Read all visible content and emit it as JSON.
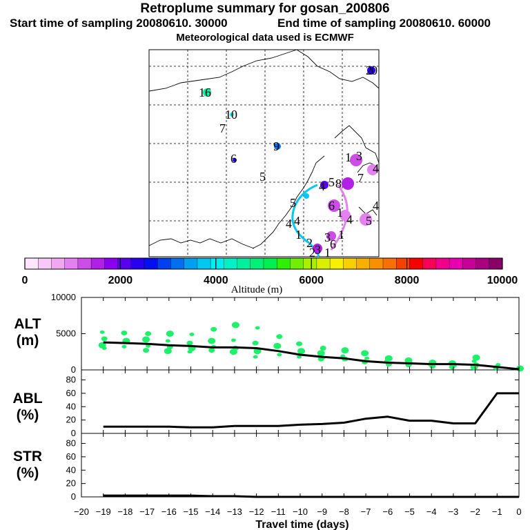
{
  "header": {
    "title": "Retroplume summary for gosan_200806",
    "start": "Start time of sampling 20080610. 30000",
    "end": "End time of sampling 20080610. 60000",
    "met": "Meteorological data used is ECMWF"
  },
  "colorbar": {
    "colors": [
      "#ffe6ff",
      "#f8c8f8",
      "#f0a8f0",
      "#e480f0",
      "#cc4ee6",
      "#b020e6",
      "#8a00f0",
      "#5a00f0",
      "#2a00f0",
      "#0010f0",
      "#0040f0",
      "#0070f0",
      "#00a0f0",
      "#00c8f0",
      "#00eef0",
      "#00f0c8",
      "#00f0a0",
      "#00f078",
      "#00f050",
      "#30f000",
      "#70f000",
      "#a8f000",
      "#d8f000",
      "#f8f000",
      "#f8d000",
      "#f8b000",
      "#f89000",
      "#f87000",
      "#f84000",
      "#f80000",
      "#f80058",
      "#f0008c",
      "#e800b0",
      "#c80098",
      "#a80080",
      "#880068"
    ],
    "ticks": [
      0,
      2000,
      4000,
      6000,
      8000,
      10000
    ],
    "label": "Altitude (m)"
  },
  "map": {
    "labels": [
      "16",
      "10",
      "7",
      "9",
      "6",
      "5",
      "2",
      "0",
      "1",
      "3",
      "4",
      "7",
      "6",
      "1",
      "4",
      "5",
      "4",
      "3",
      "6",
      "1",
      "5",
      "4",
      "4",
      "1",
      "2",
      "8",
      "5",
      "4",
      "3",
      "2",
      "1"
    ]
  },
  "panels": {
    "alt": {
      "name": "ALT",
      "unit": "(m)",
      "ticks": [
        0,
        5000,
        10000
      ]
    },
    "abl": {
      "name": "ABL",
      "unit": "(%)",
      "ticks": [
        0,
        20,
        40,
        60,
        80
      ]
    },
    "str": {
      "name": "STR",
      "unit": "(%)",
      "ticks": [
        0,
        20,
        40,
        60,
        80
      ]
    },
    "xticks": [
      -20,
      -19,
      -18,
      -17,
      -16,
      -15,
      -14,
      -13,
      -12,
      -11,
      -10,
      -9,
      -8,
      -7,
      -6,
      -5,
      -4,
      -3,
      -2,
      -1,
      0
    ],
    "xlabel": "Travel time (days)"
  },
  "chart_data": [
    {
      "type": "line",
      "title": "ALT",
      "ylabel": "ALT (m)",
      "xlabel": "Travel time (days)",
      "xlim": [
        -20,
        0
      ],
      "ylim": [
        0,
        10000
      ],
      "series": [
        {
          "name": "mean altitude",
          "x": [
            -19,
            -18,
            -17,
            -16,
            -15,
            -14,
            -13,
            -12,
            -11,
            -10,
            -9,
            -8,
            -7,
            -6,
            -5,
            -4,
            -3,
            -2,
            -1,
            0
          ],
          "values": [
            3800,
            3700,
            3600,
            3400,
            3300,
            3100,
            3100,
            3000,
            2600,
            2100,
            1800,
            1600,
            1200,
            1000,
            900,
            800,
            800,
            700,
            400,
            100
          ]
        },
        {
          "name": "particle altitudes (scatter)",
          "points": [
            [
              -19,
              5200
            ],
            [
              -19,
              4300
            ],
            [
              -19,
              3400
            ],
            [
              -19,
              3000
            ],
            [
              -18,
              5100
            ],
            [
              -18,
              4000
            ],
            [
              -18,
              3200
            ],
            [
              -17,
              5000
            ],
            [
              -17,
              4200
            ],
            [
              -17,
              3300
            ],
            [
              -17,
              2700
            ],
            [
              -16,
              5000
            ],
            [
              -16,
              4000
            ],
            [
              -16,
              3200
            ],
            [
              -16,
              2600
            ],
            [
              -15,
              4900
            ],
            [
              -15,
              3700
            ],
            [
              -15,
              3000
            ],
            [
              -15,
              2500
            ],
            [
              -14,
              5600
            ],
            [
              -14,
              4000
            ],
            [
              -14,
              3200
            ],
            [
              -14,
              2700
            ],
            [
              -13,
              6200
            ],
            [
              -13,
              4100
            ],
            [
              -13,
              3000
            ],
            [
              -13,
              2500
            ],
            [
              -12,
              5800
            ],
            [
              -12,
              3700
            ],
            [
              -12,
              2600
            ],
            [
              -12,
              1800
            ],
            [
              -11,
              4600
            ],
            [
              -11,
              3300
            ],
            [
              -11,
              2100
            ],
            [
              -10,
              3600
            ],
            [
              -10,
              2600
            ],
            [
              -10,
              1800
            ],
            [
              -9,
              3000
            ],
            [
              -9,
              2300
            ],
            [
              -9,
              1700
            ],
            [
              -9,
              1500
            ],
            [
              -8,
              2700
            ],
            [
              -8,
              1900
            ],
            [
              -8,
              1500
            ],
            [
              -7,
              2300
            ],
            [
              -7,
              1600
            ],
            [
              -7,
              1100
            ],
            [
              -6,
              1600
            ],
            [
              -6,
              1200
            ],
            [
              -6,
              800
            ],
            [
              -5,
              1300
            ],
            [
              -5,
              900
            ],
            [
              -5,
              700
            ],
            [
              -4,
              1000
            ],
            [
              -4,
              700
            ],
            [
              -4,
              500
            ],
            [
              -3,
              900
            ],
            [
              -3,
              600
            ],
            [
              -3,
              400
            ],
            [
              -2,
              1700
            ],
            [
              -2,
              1200
            ],
            [
              -2,
              700
            ],
            [
              -2,
              400
            ],
            [
              -1,
              700
            ],
            [
              -1,
              300
            ],
            [
              0,
              200
            ]
          ]
        }
      ]
    },
    {
      "type": "line",
      "title": "ABL",
      "ylabel": "ABL (%)",
      "xlim": [
        -20,
        0
      ],
      "ylim": [
        0,
        95
      ],
      "series": [
        {
          "name": "ABL fraction",
          "x": [
            -19,
            -18,
            -17,
            -16,
            -15,
            -14,
            -13,
            -12,
            -11,
            -10,
            -9,
            -8,
            -7,
            -6,
            -5,
            -4,
            -3,
            -2,
            -1,
            0
          ],
          "values": [
            10,
            10,
            10,
            10,
            9,
            9,
            11,
            11,
            11,
            13,
            14,
            16,
            22,
            25,
            19,
            19,
            15,
            15,
            60,
            60
          ]
        }
      ]
    },
    {
      "type": "line",
      "title": "STR",
      "ylabel": "STR (%)",
      "xlim": [
        -20,
        0
      ],
      "ylim": [
        0,
        95
      ],
      "series": [
        {
          "name": "STR fraction",
          "x": [
            -19,
            -18,
            -17,
            -16,
            -15,
            -14,
            -13,
            -12,
            -11,
            -10,
            -9,
            -8,
            -7,
            -6,
            -5,
            -4,
            -3,
            -2,
            -1,
            0
          ],
          "values": [
            2,
            2,
            2,
            2,
            2,
            1,
            1,
            0,
            0,
            0,
            0,
            0,
            0,
            0,
            0,
            0,
            0,
            0,
            0,
            0
          ]
        }
      ]
    }
  ]
}
